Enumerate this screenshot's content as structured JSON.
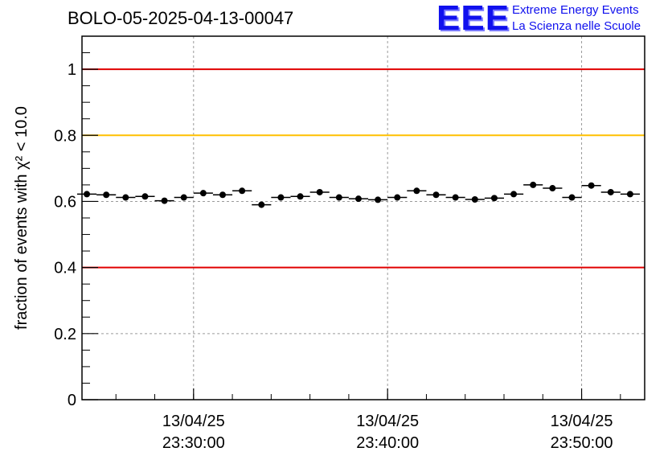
{
  "header": {
    "title": "BOLO-05-2025-04-13-00047",
    "logo_text": "EEE",
    "logo_line1": "Extreme Energy Events",
    "logo_line2": "La Scienza nelle Scuole"
  },
  "chart_data": {
    "type": "scatter",
    "title": "BOLO-05-2025-04-13-00047",
    "ylabel": "fraction of events with χ² < 10.0",
    "ylim": [
      0,
      1.1
    ],
    "xlim": [
      "23:24:15",
      "23:53:15"
    ],
    "xticks": [
      {
        "date": "13/04/25",
        "time": "23:30:00"
      },
      {
        "date": "13/04/25",
        "time": "23:40:00"
      },
      {
        "date": "13/04/25",
        "time": "23:50:00"
      }
    ],
    "yticks": [
      "0",
      "0.2",
      "0.4",
      "0.6",
      "0.8",
      "1"
    ],
    "grid": true,
    "reference_lines": [
      {
        "y": 1.0,
        "color": "#e00000"
      },
      {
        "y": 0.8,
        "color": "#ffc000"
      },
      {
        "y": 0.4,
        "color": "#e00000"
      }
    ],
    "bin_width_seconds": 60,
    "series": [
      {
        "x": [
          "23:24:30",
          "23:25:30",
          "23:26:30",
          "23:27:30",
          "23:28:30",
          "23:29:30",
          "23:30:30",
          "23:31:30",
          "23:32:30",
          "23:33:30",
          "23:34:30",
          "23:35:30",
          "23:36:30",
          "23:37:30",
          "23:38:30",
          "23:39:30",
          "23:40:30",
          "23:41:30",
          "23:42:30",
          "23:43:30",
          "23:44:30",
          "23:45:30",
          "23:46:30",
          "23:47:30",
          "23:48:30",
          "23:49:30",
          "23:50:30",
          "23:51:30",
          "23:52:30"
        ],
        "values": [
          0.622,
          0.62,
          0.612,
          0.615,
          0.602,
          0.612,
          0.625,
          0.62,
          0.632,
          0.59,
          0.612,
          0.615,
          0.628,
          0.612,
          0.608,
          0.605,
          0.612,
          0.632,
          0.62,
          0.612,
          0.606,
          0.61,
          0.622,
          0.65,
          0.64,
          0.612,
          0.648,
          0.628,
          0.622
        ],
        "errors": [
          0.007,
          0.007,
          0.007,
          0.007,
          0.007,
          0.007,
          0.007,
          0.007,
          0.007,
          0.007,
          0.007,
          0.007,
          0.007,
          0.007,
          0.007,
          0.007,
          0.007,
          0.007,
          0.007,
          0.007,
          0.007,
          0.007,
          0.007,
          0.007,
          0.007,
          0.007,
          0.007,
          0.007,
          0.007
        ]
      }
    ]
  }
}
